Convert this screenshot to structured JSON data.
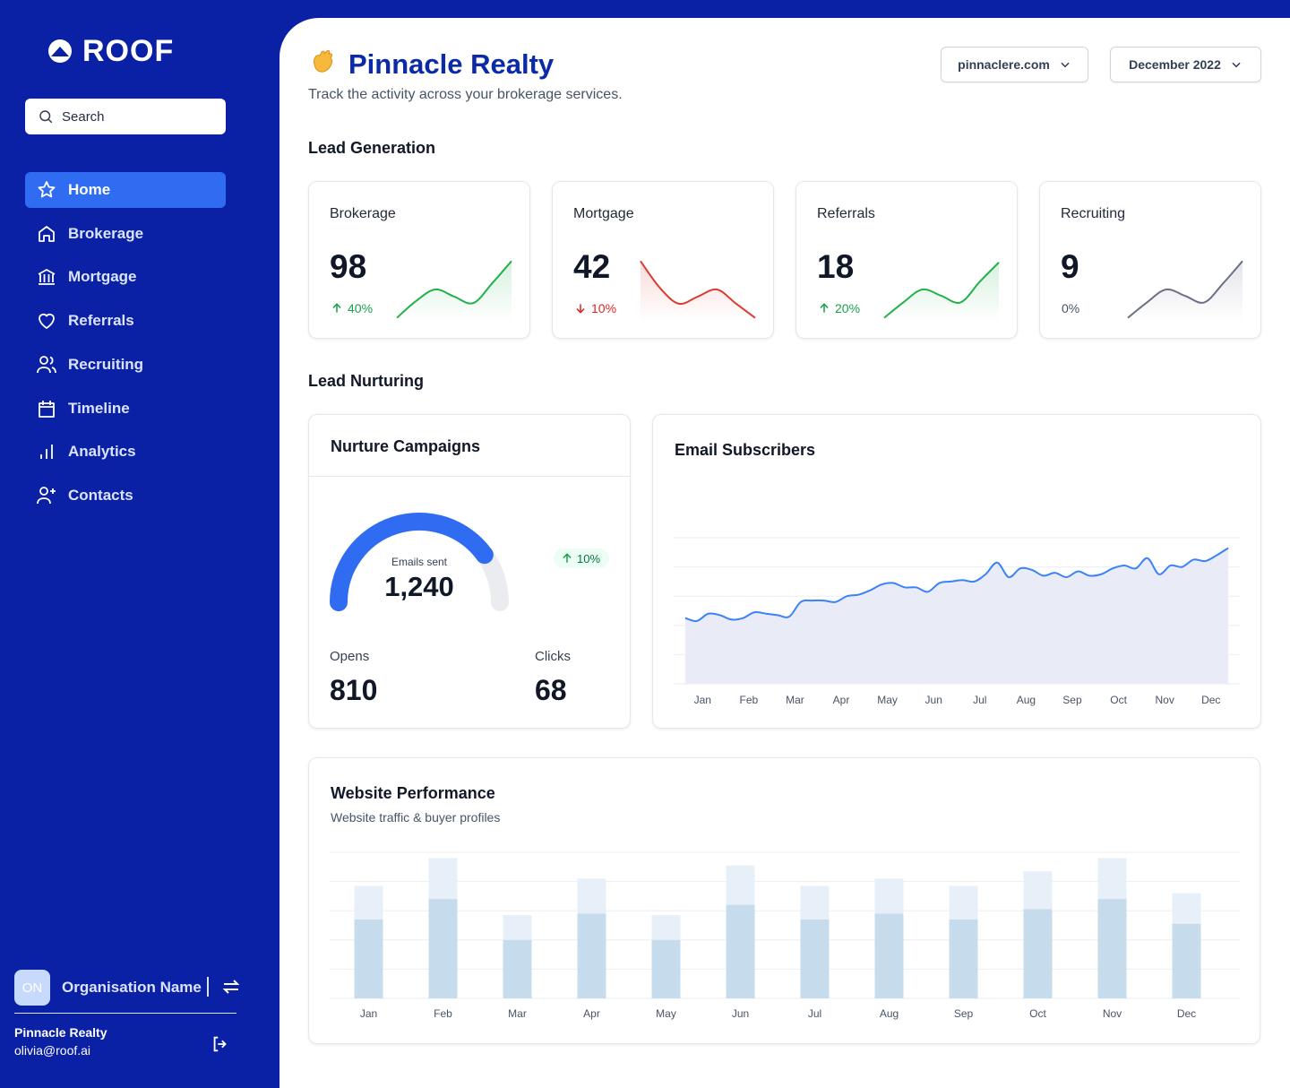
{
  "sidebar": {
    "logo": "ROOF",
    "search": "Search",
    "nav": [
      "Home",
      "Brokerage",
      "Mortgage",
      "Referrals",
      "Recruiting",
      "Timeline",
      "Analytics",
      "Contacts"
    ],
    "active": 0,
    "org": {
      "initials": "ON",
      "name": "Organisation Name"
    },
    "user": {
      "name": "Pinnacle Realty",
      "email": "olivia@roof.ai"
    }
  },
  "header": {
    "title": "Pinnacle Realty",
    "subtitle": "Track the activity across your brokerage services.",
    "filters": [
      "pinnaclere.com",
      "December 2022"
    ]
  },
  "lead_generation": {
    "title": "Lead Generation",
    "cards": [
      {
        "name": "Brokerage",
        "value": 98,
        "change": "40%",
        "trend": "up",
        "color": "#22b14c",
        "values": [
          6,
          32,
          50,
          39,
          29,
          60,
          94
        ]
      },
      {
        "name": "Mortgage",
        "value": 42,
        "change": "10%",
        "trend": "down",
        "color": "#dc3b30",
        "values": [
          94,
          53,
          28,
          39,
          50,
          28,
          6
        ]
      },
      {
        "name": "Referrals",
        "value": 18,
        "change": "20%",
        "trend": "up",
        "color": "#22b14c",
        "values": [
          6,
          30,
          50,
          40,
          30,
          62,
          92
        ]
      },
      {
        "name": "Recruiting",
        "value": 9,
        "change": "0%",
        "trend": "flat",
        "color": "#6b6f86",
        "values": [
          6,
          30,
          50,
          40,
          30,
          60,
          94
        ]
      }
    ]
  },
  "lead_nurturing": {
    "title": "Lead Nurturing",
    "campaigns": {
      "title": "Nurture Campaigns",
      "gauge_label": "Emails sent",
      "emails_sent": "1,240",
      "fill_percent": 80,
      "change": "10%",
      "trend": "up",
      "stats": [
        {
          "label": "Opens",
          "value": 810
        },
        {
          "label": "Clicks",
          "value": 68
        }
      ]
    }
  },
  "chart_data": [
    {
      "type": "line",
      "title": "Email Subscribers",
      "color": "#3b82f6",
      "grid": true,
      "x": [
        0,
        1,
        2,
        3,
        4,
        5,
        6,
        7,
        8,
        9,
        10,
        11,
        12,
        13,
        14,
        15,
        16,
        17,
        18,
        19,
        20,
        21,
        22,
        23,
        24,
        25,
        26,
        27,
        28,
        29,
        30,
        31,
        32,
        33,
        34,
        35,
        36,
        37,
        38,
        39,
        40,
        41,
        42,
        43,
        44,
        45,
        46,
        47
      ],
      "values": [
        45,
        43,
        48,
        47,
        44,
        45,
        49,
        48,
        47,
        46,
        56,
        57,
        57,
        56,
        60,
        61,
        64,
        68,
        69,
        66,
        66,
        63,
        69,
        70,
        71,
        70,
        75,
        83,
        73,
        79,
        78,
        74,
        76,
        73,
        77,
        74,
        75,
        79,
        81,
        79,
        86,
        75,
        81,
        80,
        85,
        84,
        88,
        93
      ],
      "xlim": [
        -1,
        48
      ],
      "ylim": [
        0,
        100
      ],
      "yticks": [
        0,
        20,
        40,
        60,
        80,
        100
      ],
      "xticks": [
        {
          "value": 1.5,
          "label": "Jan"
        },
        {
          "value": 5.5,
          "label": "Feb"
        },
        {
          "value": 9.5,
          "label": "Mar"
        },
        {
          "value": 13.5,
          "label": "Apr"
        },
        {
          "value": 17.5,
          "label": "May"
        },
        {
          "value": 21.5,
          "label": "Jun"
        },
        {
          "value": 25.5,
          "label": "Jul"
        },
        {
          "value": 29.5,
          "label": "Aug"
        },
        {
          "value": 33.5,
          "label": "Sep"
        },
        {
          "value": 37.5,
          "label": "Oct"
        },
        {
          "value": 41.5,
          "label": "Nov"
        },
        {
          "value": 45.5,
          "label": "Dec"
        }
      ]
    },
    {
      "type": "bar",
      "title": "Website Performance",
      "subtitle": "Website traffic & buyer profiles",
      "grid": true,
      "categories": [
        "Jan",
        "Feb",
        "Mar",
        "Apr",
        "May",
        "Jun",
        "Jul",
        "Aug",
        "Sep",
        "Oct",
        "Nov",
        "Dec"
      ],
      "series": [
        {
          "color": "#e7f0f8",
          "values": [
            77,
            96,
            57,
            82,
            57,
            91,
            77,
            82,
            77,
            87,
            96,
            72
          ]
        },
        {
          "color": "#c6dcec",
          "values": [
            54,
            68,
            40,
            58,
            40,
            64,
            54,
            58,
            54,
            61,
            68,
            51
          ]
        }
      ],
      "ylim": [
        0,
        100
      ],
      "yticks": [
        0,
        20,
        40,
        60,
        80,
        100
      ]
    }
  ]
}
